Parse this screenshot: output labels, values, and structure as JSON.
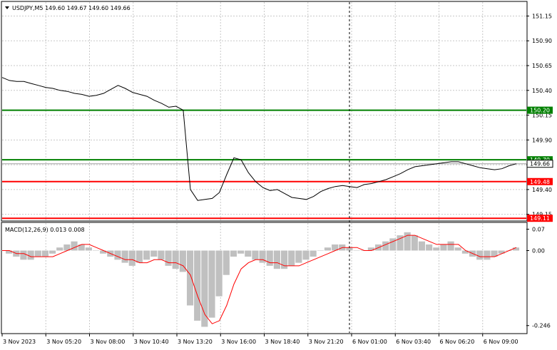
{
  "window": {
    "symbol_header": "USDJPY,M5  149.60 149.67 149.60 149.66"
  },
  "main_chart": {
    "type": "line",
    "y_ticks": [
      "151.15",
      "150.90",
      "150.65",
      "150.40",
      "150.15",
      "149.90",
      "149.65",
      "149.40",
      "149.15"
    ],
    "y_range": [
      149.09,
      151.29
    ],
    "price_series": [
      150.53,
      150.5,
      150.49,
      150.49,
      150.47,
      150.45,
      150.43,
      150.42,
      150.4,
      150.39,
      150.37,
      150.36,
      150.34,
      150.35,
      150.37,
      150.41,
      150.45,
      150.42,
      150.38,
      150.36,
      150.34,
      150.3,
      150.27,
      150.23,
      150.24,
      150.2,
      149.4,
      149.29,
      149.3,
      149.31,
      149.37,
      149.55,
      149.72,
      149.7,
      149.57,
      149.48,
      149.42,
      149.39,
      149.4,
      149.36,
      149.32,
      149.31,
      149.3,
      149.33,
      149.38,
      149.41,
      149.43,
      149.44,
      149.43,
      149.42,
      149.45,
      149.46,
      149.48,
      149.5,
      149.53,
      149.56,
      149.6,
      149.63,
      149.64,
      149.65,
      149.66,
      149.67,
      149.68,
      149.68,
      149.66,
      149.64,
      149.62,
      149.61,
      149.6,
      149.61,
      149.64,
      149.66
    ],
    "levels": [
      {
        "value": 150.2,
        "label": "150.20",
        "color": "#008000"
      },
      {
        "value": 149.7,
        "label": "149.70",
        "color": "#008000"
      },
      {
        "value": 149.48,
        "label": "149.48",
        "color": "#ff0000"
      },
      {
        "value": 149.11,
        "label": "149.11",
        "color": "#ff0000"
      }
    ],
    "current_price": {
      "value": 149.66,
      "label": "149.66"
    }
  },
  "macd": {
    "label": "MACD(12,26,9) 0.013 0.008",
    "y_ticks": [
      "0.07",
      "0.00",
      "-0.246"
    ],
    "y_range": [
      -0.27,
      0.09
    ],
    "histogram": [
      0.0,
      -0.01,
      -0.02,
      -0.03,
      -0.03,
      -0.02,
      -0.02,
      -0.01,
      0.01,
      0.02,
      0.03,
      0.02,
      0.01,
      0.0,
      -0.01,
      -0.02,
      -0.03,
      -0.04,
      -0.05,
      -0.04,
      -0.03,
      -0.02,
      -0.03,
      -0.05,
      -0.06,
      -0.07,
      -0.18,
      -0.23,
      -0.25,
      -0.22,
      -0.15,
      -0.08,
      -0.02,
      -0.01,
      -0.02,
      -0.03,
      -0.04,
      -0.05,
      -0.06,
      -0.06,
      -0.05,
      -0.04,
      -0.03,
      -0.02,
      0.0,
      0.01,
      0.02,
      0.02,
      0.01,
      0.0,
      0.0,
      0.01,
      0.02,
      0.03,
      0.04,
      0.05,
      0.06,
      0.05,
      0.03,
      0.02,
      0.01,
      0.02,
      0.03,
      0.01,
      -0.01,
      -0.02,
      -0.03,
      -0.03,
      -0.02,
      -0.01,
      0.0,
      0.01
    ],
    "signal": [
      0.0,
      0.0,
      -0.01,
      -0.01,
      -0.02,
      -0.02,
      -0.02,
      -0.02,
      -0.01,
      0.0,
      0.01,
      0.02,
      0.02,
      0.01,
      0.0,
      -0.01,
      -0.02,
      -0.03,
      -0.03,
      -0.04,
      -0.04,
      -0.03,
      -0.03,
      -0.04,
      -0.04,
      -0.05,
      -0.08,
      -0.15,
      -0.21,
      -0.24,
      -0.23,
      -0.18,
      -0.11,
      -0.06,
      -0.04,
      -0.03,
      -0.03,
      -0.04,
      -0.04,
      -0.05,
      -0.05,
      -0.05,
      -0.04,
      -0.03,
      -0.02,
      -0.01,
      0.0,
      0.01,
      0.01,
      0.01,
      0.0,
      0.0,
      0.01,
      0.02,
      0.03,
      0.04,
      0.05,
      0.05,
      0.04,
      0.03,
      0.02,
      0.02,
      0.02,
      0.02,
      0.0,
      -0.01,
      -0.02,
      -0.02,
      -0.02,
      -0.01,
      0.0,
      0.01
    ]
  },
  "time_axis": {
    "labels": [
      "3 Nov 2023",
      "3 Nov 05:20",
      "3 Nov 08:00",
      "3 Nov 10:40",
      "3 Nov 13:20",
      "3 Nov 16:00",
      "3 Nov 18:40",
      "3 Nov 21:20",
      "6 Nov 01:00",
      "6 Nov 03:40",
      "6 Nov 06:20",
      "6 Nov 09:00"
    ]
  },
  "colors": {
    "price_line": "#000000",
    "grid": "#c8c8c8",
    "histogram": "#c0c0c0",
    "signal": "#ff0000",
    "crosshair": "#000000"
  }
}
